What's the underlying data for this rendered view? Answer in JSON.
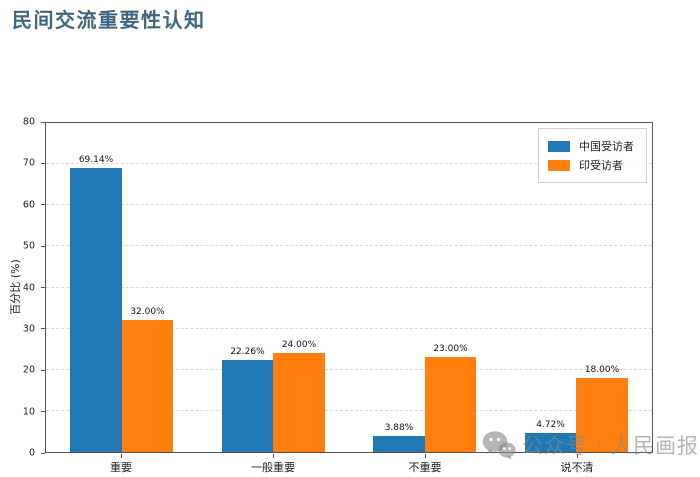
{
  "header": {
    "title": "民间交流重要性认知",
    "title_color": "#3e667c"
  },
  "chart_data": {
    "type": "bar",
    "title": "民间交流重要性认知",
    "categories": [
      "重要",
      "一般重要",
      "不重要",
      "说不清"
    ],
    "series": [
      {
        "name": "中国受访者",
        "color": "#1f77b4",
        "values": [
          69.14,
          22.26,
          3.88,
          4.72
        ],
        "labels": [
          "69.14%",
          "22.26%",
          "3.88%",
          "4.72%"
        ]
      },
      {
        "name": "印受访者",
        "color": "#ff7f0e",
        "values": [
          32.0,
          24.0,
          23.0,
          18.0
        ],
        "labels": [
          "32.00%",
          "24.00%",
          "23.00%",
          "18.00%"
        ]
      }
    ],
    "xlabel": "",
    "ylabel": "百分比 (%)",
    "ylim": [
      0,
      80
    ],
    "yticks": [
      0,
      10,
      20,
      30,
      40,
      50,
      60,
      70,
      80
    ],
    "grid": "horizontal dashed",
    "legend_position": "upper right"
  },
  "watermark": {
    "text": "公众号 · 人民画报",
    "icon": "wechat-icon"
  }
}
